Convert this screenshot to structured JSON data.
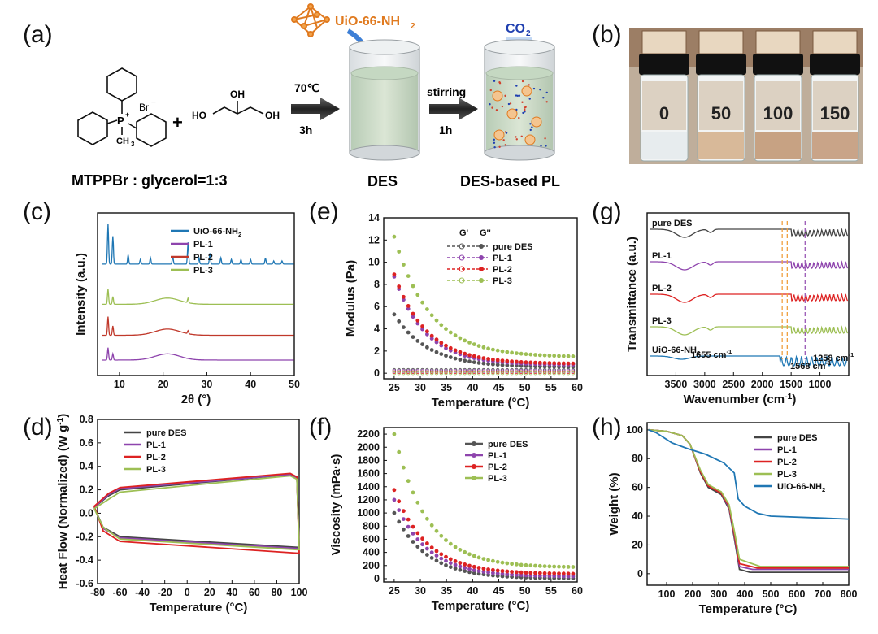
{
  "panel_labels": {
    "a": "(a)",
    "b": "(b)",
    "c": "(c)",
    "d": "(d)",
    "e": "(e)",
    "f": "(f)",
    "g": "(g)",
    "h": "(h)"
  },
  "scheme": {
    "anion": "Br",
    "anion_charge": "−",
    "p_atom": "P",
    "p_charge": "+",
    "methyl": "CH",
    "methyl_sub": "3",
    "plus": "+",
    "glycerol_oh_top": "OH",
    "glycerol_oh_left": "HO",
    "glycerol_oh_right": "OH",
    "step1_temp": "70℃",
    "step1_time": "3h",
    "mof_label": "UiO-66-NH",
    "mof_sub": "2",
    "step2_label": "stirring",
    "step2_time": "1h",
    "gas_label": "CO",
    "gas_sub": "2",
    "ratio_caption": "MTPPBr : glycerol=1:3",
    "des_caption": "DES",
    "pl_caption": "DES-based PL"
  },
  "photo": {
    "vial_labels": [
      "0",
      "50",
      "100",
      "150"
    ]
  },
  "chart_data": [
    {
      "id": "c",
      "type": "line",
      "title": "",
      "xlabel": "2θ (°)",
      "ylabel": "Intensity (a.u.)",
      "xlim": [
        5,
        50
      ],
      "xticks": [
        "10",
        "20",
        "30",
        "40",
        "50"
      ],
      "series": [
        {
          "name": "UiO-66-NH2",
          "label_main": "UiO-66-NH",
          "label_sub": "2",
          "color": "#1f77b4",
          "offset": 0.72,
          "peaks": [
            [
              7.4,
              0.26
            ],
            [
              8.5,
              0.18
            ],
            [
              12.0,
              0.06
            ],
            [
              14.8,
              0.03
            ],
            [
              17.1,
              0.04
            ],
            [
              22.2,
              0.05
            ],
            [
              25.7,
              0.14
            ],
            [
              28.2,
              0.04
            ],
            [
              30.7,
              0.07
            ],
            [
              33.2,
              0.04
            ],
            [
              35.6,
              0.03
            ],
            [
              37.8,
              0.03
            ],
            [
              40.0,
              0.03
            ],
            [
              43.4,
              0.04
            ],
            [
              45.3,
              0.02
            ],
            [
              47.2,
              0.02
            ]
          ]
        },
        {
          "name": "PL-3",
          "label_main": "PL-3",
          "label_sub": "",
          "color": "#9dbf54",
          "offset": 0.46,
          "peaks": [
            [
              7.4,
              0.1
            ],
            [
              8.5,
              0.05
            ],
            [
              25.7,
              0.03
            ]
          ],
          "hump": 0.04
        },
        {
          "name": "PL-2",
          "label_main": "PL-2",
          "label_sub": "",
          "color": "#c0392b",
          "offset": 0.26,
          "peaks": [
            [
              7.4,
              0.12
            ],
            [
              8.5,
              0.06
            ],
            [
              25.7,
              0.02
            ]
          ],
          "hump": 0.04
        },
        {
          "name": "PL-1",
          "label_main": "PL-1",
          "label_sub": "",
          "color": "#8e44ad",
          "offset": 0.1,
          "peaks": [
            [
              7.4,
              0.08
            ],
            [
              8.5,
              0.04
            ]
          ],
          "hump": 0.04
        }
      ]
    },
    {
      "id": "d",
      "type": "line",
      "title": "",
      "xlabel": "Temperature (°C)",
      "ylabel_main": "Heat Flow (Normalized) (W g",
      "ylabel_sup": "-1",
      "ylabel_end": ")",
      "xlim": [
        -80,
        100
      ],
      "ylim": [
        -0.6,
        0.8
      ],
      "xticks": [
        -80,
        -60,
        -40,
        -20,
        0,
        20,
        40,
        60,
        80,
        100
      ],
      "yticks": [
        "-0.6",
        "-0.4",
        "-0.2",
        "0.0",
        "0.2",
        "0.4",
        "0.6",
        "0.8"
      ],
      "series": [
        {
          "name": "pure DES",
          "color": "#444444",
          "upper": [
            [
              -83,
              0.05
            ],
            [
              -70,
              0.15
            ],
            [
              -60,
              0.2
            ],
            [
              92,
              0.33
            ],
            [
              98,
              0.3
            ],
            [
              100,
              -0.29
            ]
          ],
          "lower": [
            [
              -83,
              0.05
            ],
            [
              -75,
              -0.12
            ],
            [
              -60,
              -0.2
            ],
            [
              98,
              -0.29
            ]
          ]
        },
        {
          "name": "PL-1",
          "color": "#8e44ad",
          "upper": [
            [
              -83,
              0.05
            ],
            [
              -70,
              0.16
            ],
            [
              -60,
              0.21
            ],
            [
              92,
              0.33
            ],
            [
              98,
              0.3
            ],
            [
              100,
              -0.3
            ]
          ],
          "lower": [
            [
              -83,
              0.05
            ],
            [
              -75,
              -0.13
            ],
            [
              -60,
              -0.21
            ],
            [
              98,
              -0.3
            ]
          ]
        },
        {
          "name": "PL-2",
          "color": "#dd2222",
          "upper": [
            [
              -83,
              0.06
            ],
            [
              -70,
              0.17
            ],
            [
              -60,
              0.22
            ],
            [
              92,
              0.34
            ],
            [
              98,
              0.31
            ],
            [
              100,
              -0.34
            ]
          ],
          "lower": [
            [
              -83,
              0.06
            ],
            [
              -75,
              -0.15
            ],
            [
              -60,
              -0.24
            ],
            [
              98,
              -0.34
            ]
          ]
        },
        {
          "name": "PL-3",
          "color": "#9dbf54",
          "upper": [
            [
              -83,
              0.04
            ],
            [
              -70,
              0.12
            ],
            [
              -60,
              0.18
            ],
            [
              92,
              0.32
            ],
            [
              98,
              0.29
            ],
            [
              100,
              -0.31
            ]
          ],
          "lower": [
            [
              -83,
              0.04
            ],
            [
              -75,
              -0.12
            ],
            [
              -60,
              -0.22
            ],
            [
              98,
              -0.31
            ]
          ]
        }
      ]
    },
    {
      "id": "e",
      "type": "scatter",
      "title": "",
      "xlabel": "Temperature (°C)",
      "ylabel": "Modulus (Pa)",
      "xlim": [
        23,
        60
      ],
      "ylim": [
        -0.5,
        14
      ],
      "xticks": [
        25,
        30,
        35,
        40,
        45,
        50,
        55,
        60
      ],
      "yticks": [
        0,
        2,
        4,
        6,
        8,
        10,
        12,
        14
      ],
      "legend_header": [
        "G'",
        "G''"
      ],
      "series": [
        {
          "name": "pure DES",
          "color": "#555555",
          "gp_start": 5.3,
          "gp_end": 0.55,
          "gpp": 0.3
        },
        {
          "name": "PL-1",
          "color": "#8e44ad",
          "gp_start": 8.7,
          "gp_end": 0.75,
          "gpp": 0.2
        },
        {
          "name": "PL-2",
          "color": "#dd2222",
          "gp_start": 8.9,
          "gp_end": 0.85,
          "gpp": 0.1
        },
        {
          "name": "PL-3",
          "color": "#9dbf54",
          "gp_start": 12.3,
          "gp_end": 1.45,
          "gpp": 0.0
        }
      ]
    },
    {
      "id": "f",
      "type": "scatter",
      "title": "",
      "xlabel": "Temperature (°C)",
      "ylabel": "Viscosity (mPa·s)",
      "xlim": [
        23,
        60
      ],
      "ylim": [
        -50,
        2300
      ],
      "xticks": [
        25,
        30,
        35,
        40,
        45,
        50,
        55,
        60
      ],
      "yticks": [
        0,
        200,
        400,
        600,
        800,
        1000,
        1200,
        1400,
        1600,
        1800,
        2000,
        2200
      ],
      "series": [
        {
          "name": "pure DES",
          "color": "#555555",
          "start": 1000,
          "end": 0
        },
        {
          "name": "PL-1",
          "color": "#8e44ad",
          "start": 1200,
          "end": 30
        },
        {
          "name": "PL-2",
          "color": "#dd2222",
          "start": 1350,
          "end": 70
        },
        {
          "name": "PL-3",
          "color": "#9dbf54",
          "start": 2200,
          "end": 170
        }
      ]
    },
    {
      "id": "g",
      "type": "line",
      "title": "",
      "xlabel": "Wavenumber (cm",
      "xlabel_sup": "-1",
      "xlabel_end": ")",
      "ylabel": "Transmittance (a.u.)",
      "xlim": [
        4000,
        500
      ],
      "xticks": [
        3500,
        3000,
        2500,
        2000,
        1500,
        1000
      ],
      "annotations": [
        {
          "text": "1655 cm",
          "sup": "-1",
          "x": 1655
        },
        {
          "text": "1568 cm",
          "sup": "-1",
          "x": 1568
        },
        {
          "text": "1258 cm",
          "sup": "-1",
          "x": 1258
        }
      ],
      "series": [
        {
          "name": "pure DES",
          "label_main": "pure DES",
          "label_sub": "",
          "color": "#444444",
          "base": 0.9
        },
        {
          "name": "PL-1",
          "label_main": "PL-1",
          "label_sub": "",
          "color": "#8e44ad",
          "base": 0.7
        },
        {
          "name": "PL-2",
          "label_main": "PL-2",
          "label_sub": "",
          "color": "#dd2222",
          "base": 0.5
        },
        {
          "name": "PL-3",
          "label_main": "PL-3",
          "label_sub": "",
          "color": "#9dbf54",
          "base": 0.3
        },
        {
          "name": "UiO-66-NH2",
          "label_main": "UiO-66-NH",
          "label_sub": "2",
          "color": "#1f77b4",
          "base": 0.12
        }
      ]
    },
    {
      "id": "h",
      "type": "line",
      "title": "",
      "xlabel": "Temperature (°C)",
      "ylabel": "Weight (%)",
      "xlim": [
        25,
        800
      ],
      "ylim": [
        -8,
        105
      ],
      "xticks": [
        100,
        200,
        300,
        400,
        500,
        600,
        700,
        800
      ],
      "yticks": [
        0,
        20,
        40,
        60,
        80,
        100
      ],
      "series": [
        {
          "name": "pure DES",
          "color": "#444444",
          "points": [
            [
              30,
              100
            ],
            [
              100,
              99
            ],
            [
              160,
              96
            ],
            [
              190,
              90
            ],
            [
              230,
              70
            ],
            [
              260,
              60
            ],
            [
              310,
              55
            ],
            [
              340,
              45
            ],
            [
              360,
              25
            ],
            [
              380,
              3
            ],
            [
              420,
              1
            ],
            [
              800,
              1
            ]
          ]
        },
        {
          "name": "PL-1",
          "color": "#8e44ad",
          "points": [
            [
              30,
              100
            ],
            [
              100,
              99
            ],
            [
              160,
              96
            ],
            [
              190,
              90
            ],
            [
              230,
              71
            ],
            [
              260,
              61
            ],
            [
              310,
              56
            ],
            [
              340,
              46
            ],
            [
              360,
              27
            ],
            [
              380,
              5
            ],
            [
              430,
              3
            ],
            [
              800,
              3
            ]
          ]
        },
        {
          "name": "PL-2",
          "color": "#dd2222",
          "points": [
            [
              30,
              100
            ],
            [
              100,
              99
            ],
            [
              160,
              96
            ],
            [
              190,
              90
            ],
            [
              230,
              71
            ],
            [
              260,
              61
            ],
            [
              310,
              56
            ],
            [
              340,
              47
            ],
            [
              360,
              28
            ],
            [
              380,
              7
            ],
            [
              450,
              4
            ],
            [
              800,
              4
            ]
          ]
        },
        {
          "name": "PL-3",
          "color": "#9dbf54",
          "points": [
            [
              30,
              100
            ],
            [
              100,
              99
            ],
            [
              160,
              96
            ],
            [
              190,
              90
            ],
            [
              230,
              72
            ],
            [
              260,
              62
            ],
            [
              310,
              57
            ],
            [
              340,
              48
            ],
            [
              360,
              30
            ],
            [
              380,
              10
            ],
            [
              460,
              5
            ],
            [
              800,
              5
            ]
          ]
        },
        {
          "name": "UiO-66-NH2",
          "label_main": "UiO-66-NH",
          "label_sub": "2",
          "color": "#1f77b4",
          "points": [
            [
              30,
              100
            ],
            [
              60,
              98
            ],
            [
              120,
              91
            ],
            [
              180,
              87
            ],
            [
              250,
              83
            ],
            [
              320,
              77
            ],
            [
              360,
              70
            ],
            [
              375,
              52
            ],
            [
              400,
              47
            ],
            [
              450,
              42
            ],
            [
              500,
              40
            ],
            [
              800,
              38
            ]
          ]
        }
      ]
    }
  ]
}
